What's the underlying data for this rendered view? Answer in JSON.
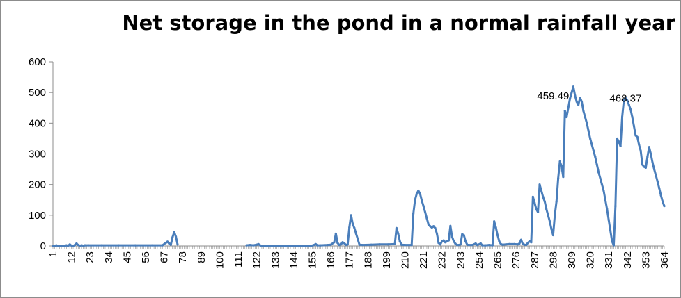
{
  "chart_data": {
    "type": "line",
    "title": "Net storage in the pond in a normal rainfall year",
    "xlabel": "",
    "ylabel": "",
    "ylim": [
      0,
      600
    ],
    "yticks": [
      0,
      100,
      200,
      300,
      400,
      500,
      600
    ],
    "xlim": [
      1,
      364
    ],
    "xticks": [
      1,
      12,
      23,
      34,
      45,
      56,
      67,
      78,
      89,
      100,
      111,
      122,
      133,
      144,
      155,
      166,
      177,
      188,
      199,
      210,
      221,
      232,
      243,
      254,
      265,
      276,
      287,
      298,
      309,
      320,
      331,
      342,
      353,
      364
    ],
    "grid": false,
    "legend": "none",
    "line_color": "#4a7ebb",
    "series": [
      {
        "gaps": [
          [
            76,
            115
          ]
        ],
        "points": [
          [
            1,
            0
          ],
          [
            2,
            0
          ],
          [
            3,
            2
          ],
          [
            4,
            0
          ],
          [
            5,
            0
          ],
          [
            6,
            1
          ],
          [
            7,
            0
          ],
          [
            8,
            0
          ],
          [
            9,
            2
          ],
          [
            10,
            0
          ],
          [
            11,
            5
          ],
          [
            12,
            1
          ],
          [
            13,
            0
          ],
          [
            14,
            3
          ],
          [
            15,
            8
          ],
          [
            16,
            3
          ],
          [
            17,
            1
          ],
          [
            18,
            2
          ],
          [
            19,
            1
          ],
          [
            20,
            2
          ],
          [
            22,
            2
          ],
          [
            30,
            2
          ],
          [
            40,
            2
          ],
          [
            50,
            2
          ],
          [
            60,
            2
          ],
          [
            66,
            2
          ],
          [
            68,
            10
          ],
          [
            69,
            14
          ],
          [
            70,
            8
          ],
          [
            71,
            4
          ],
          [
            72,
            28
          ],
          [
            73,
            45
          ],
          [
            74,
            30
          ],
          [
            75,
            5
          ],
          [
            116,
            2
          ],
          [
            118,
            3
          ],
          [
            120,
            2
          ],
          [
            122,
            4
          ],
          [
            123,
            6
          ],
          [
            124,
            2
          ],
          [
            125,
            0
          ],
          [
            130,
            0
          ],
          [
            140,
            0
          ],
          [
            150,
            0
          ],
          [
            154,
            0
          ],
          [
            156,
            3
          ],
          [
            157,
            6
          ],
          [
            158,
            2
          ],
          [
            160,
            2
          ],
          [
            164,
            3
          ],
          [
            166,
            4
          ],
          [
            168,
            12
          ],
          [
            169,
            40
          ],
          [
            170,
            10
          ],
          [
            171,
            3
          ],
          [
            172,
            5
          ],
          [
            173,
            12
          ],
          [
            174,
            9
          ],
          [
            175,
            3
          ],
          [
            176,
            5
          ],
          [
            177,
            60
          ],
          [
            178,
            100
          ],
          [
            179,
            72
          ],
          [
            180,
            58
          ],
          [
            181,
            40
          ],
          [
            182,
            22
          ],
          [
            183,
            4
          ],
          [
            185,
            3
          ],
          [
            190,
            4
          ],
          [
            195,
            5
          ],
          [
            200,
            5
          ],
          [
            204,
            6
          ],
          [
            205,
            58
          ],
          [
            206,
            40
          ],
          [
            207,
            15
          ],
          [
            208,
            4
          ],
          [
            210,
            3
          ],
          [
            214,
            3
          ],
          [
            215,
            105
          ],
          [
            216,
            150
          ],
          [
            217,
            170
          ],
          [
            218,
            180
          ],
          [
            219,
            170
          ],
          [
            220,
            148
          ],
          [
            221,
            130
          ],
          [
            222,
            110
          ],
          [
            223,
            90
          ],
          [
            224,
            70
          ],
          [
            225,
            64
          ],
          [
            226,
            60
          ],
          [
            227,
            64
          ],
          [
            228,
            58
          ],
          [
            229,
            40
          ],
          [
            230,
            10
          ],
          [
            231,
            5
          ],
          [
            232,
            15
          ],
          [
            233,
            18
          ],
          [
            234,
            12
          ],
          [
            235,
            15
          ],
          [
            236,
            18
          ],
          [
            237,
            65
          ],
          [
            238,
            30
          ],
          [
            239,
            15
          ],
          [
            240,
            7
          ],
          [
            241,
            3
          ],
          [
            242,
            3
          ],
          [
            243,
            5
          ],
          [
            244,
            38
          ],
          [
            245,
            35
          ],
          [
            246,
            15
          ],
          [
            247,
            4
          ],
          [
            248,
            3
          ],
          [
            250,
            3
          ],
          [
            252,
            8
          ],
          [
            253,
            3
          ],
          [
            255,
            8
          ],
          [
            256,
            2
          ],
          [
            258,
            2
          ],
          [
            260,
            3
          ],
          [
            262,
            2
          ],
          [
            263,
            80
          ],
          [
            264,
            60
          ],
          [
            265,
            35
          ],
          [
            266,
            15
          ],
          [
            267,
            6
          ],
          [
            268,
            4
          ],
          [
            270,
            5
          ],
          [
            272,
            6
          ],
          [
            275,
            6
          ],
          [
            277,
            5
          ],
          [
            278,
            8
          ],
          [
            279,
            20
          ],
          [
            280,
            6
          ],
          [
            281,
            4
          ],
          [
            282,
            3
          ],
          [
            283,
            10
          ],
          [
            284,
            15
          ],
          [
            285,
            12
          ],
          [
            286,
            160
          ],
          [
            287,
            140
          ],
          [
            288,
            120
          ],
          [
            289,
            110
          ],
          [
            290,
            200
          ],
          [
            291,
            180
          ],
          [
            292,
            160
          ],
          [
            293,
            145
          ],
          [
            294,
            120
          ],
          [
            295,
            100
          ],
          [
            296,
            80
          ],
          [
            297,
            55
          ],
          [
            298,
            35
          ],
          [
            299,
            100
          ],
          [
            300,
            145
          ],
          [
            301,
            220
          ],
          [
            302,
            275
          ],
          [
            303,
            260
          ],
          [
            304,
            225
          ],
          [
            305,
            440
          ],
          [
            306,
            420
          ],
          [
            307,
            450
          ],
          [
            308,
            480
          ],
          [
            309,
            500
          ],
          [
            310,
            519
          ],
          [
            311,
            490
          ],
          [
            312,
            470
          ],
          [
            313,
            460
          ],
          [
            314,
            483
          ],
          [
            315,
            470
          ],
          [
            316,
            440
          ],
          [
            317,
            420
          ],
          [
            318,
            400
          ],
          [
            319,
            375
          ],
          [
            320,
            350
          ],
          [
            321,
            330
          ],
          [
            322,
            310
          ],
          [
            323,
            290
          ],
          [
            324,
            265
          ],
          [
            325,
            240
          ],
          [
            326,
            220
          ],
          [
            327,
            200
          ],
          [
            328,
            180
          ],
          [
            329,
            150
          ],
          [
            330,
            120
          ],
          [
            331,
            85
          ],
          [
            332,
            50
          ],
          [
            333,
            15
          ],
          [
            334,
            2
          ],
          [
            335,
            130
          ],
          [
            336,
            350
          ],
          [
            337,
            340
          ],
          [
            338,
            325
          ],
          [
            339,
            420
          ],
          [
            340,
            475
          ],
          [
            341,
            482
          ],
          [
            342,
            474
          ],
          [
            343,
            460
          ],
          [
            344,
            445
          ],
          [
            345,
            420
          ],
          [
            346,
            390
          ],
          [
            347,
            360
          ],
          [
            348,
            355
          ],
          [
            349,
            330
          ],
          [
            350,
            310
          ],
          [
            351,
            265
          ],
          [
            352,
            258
          ],
          [
            353,
            255
          ],
          [
            354,
            290
          ],
          [
            355,
            322
          ],
          [
            356,
            300
          ],
          [
            357,
            272
          ],
          [
            358,
            250
          ],
          [
            359,
            230
          ],
          [
            360,
            210
          ],
          [
            361,
            188
          ],
          [
            362,
            165
          ],
          [
            363,
            145
          ],
          [
            364,
            130
          ]
        ]
      }
    ],
    "annotations": [
      {
        "x": 298,
        "y": 500,
        "text": "459.49"
      },
      {
        "x": 341,
        "y": 492,
        "text": "468.37"
      }
    ]
  }
}
